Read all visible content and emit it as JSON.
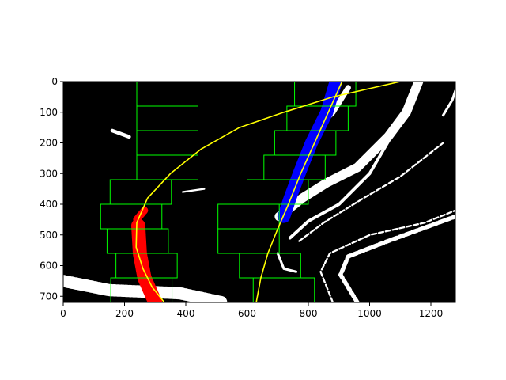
{
  "chart_data": {
    "type": "image",
    "title": "",
    "xlabel": "",
    "ylabel": "",
    "xlim": [
      0,
      1280
    ],
    "ylim": [
      720,
      0
    ],
    "x_ticks": [
      0,
      200,
      400,
      600,
      800,
      1000,
      1200
    ],
    "y_ticks": [
      0,
      100,
      200,
      300,
      400,
      500,
      600,
      700
    ],
    "x_tick_labels": [
      "0",
      "200",
      "400",
      "600",
      "800",
      "1000",
      "1200"
    ],
    "y_tick_labels": [
      "0",
      "100",
      "200",
      "300",
      "400",
      "500",
      "600",
      "700"
    ],
    "colors": {
      "background": "#000000",
      "window": "#00ff00",
      "fit_line": "#ffff00",
      "left_lane_pixels": "#ff0000",
      "right_lane_pixels": "#0000ff",
      "other_pixels": "#ffffff"
    },
    "windows": {
      "left": [
        {
          "x1": 155,
          "y1": 640,
          "x2": 355,
          "y2": 720
        },
        {
          "x1": 172,
          "y1": 560,
          "x2": 372,
          "y2": 640
        },
        {
          "x1": 143,
          "y1": 480,
          "x2": 343,
          "y2": 560
        },
        {
          "x1": 122,
          "y1": 400,
          "x2": 322,
          "y2": 480
        },
        {
          "x1": 153,
          "y1": 320,
          "x2": 353,
          "y2": 400
        },
        {
          "x1": 240,
          "y1": 240,
          "x2": 440,
          "y2": 320
        },
        {
          "x1": 240,
          "y1": 160,
          "x2": 440,
          "y2": 240
        },
        {
          "x1": 240,
          "y1": 80,
          "x2": 440,
          "y2": 160
        },
        {
          "x1": 240,
          "y1": 0,
          "x2": 440,
          "y2": 80
        }
      ],
      "right": [
        {
          "x1": 620,
          "y1": 640,
          "x2": 820,
          "y2": 720
        },
        {
          "x1": 575,
          "y1": 560,
          "x2": 775,
          "y2": 640
        },
        {
          "x1": 505,
          "y1": 480,
          "x2": 705,
          "y2": 560
        },
        {
          "x1": 505,
          "y1": 400,
          "x2": 705,
          "y2": 480
        },
        {
          "x1": 600,
          "y1": 320,
          "x2": 800,
          "y2": 400
        },
        {
          "x1": 655,
          "y1": 240,
          "x2": 855,
          "y2": 320
        },
        {
          "x1": 690,
          "y1": 160,
          "x2": 890,
          "y2": 240
        },
        {
          "x1": 730,
          "y1": 80,
          "x2": 930,
          "y2": 160
        },
        {
          "x1": 755,
          "y1": 0,
          "x2": 955,
          "y2": 80
        }
      ]
    },
    "fit_curves": {
      "left": [
        {
          "x": 1100,
          "y": 0
        },
        {
          "x": 880,
          "y": 50
        },
        {
          "x": 720,
          "y": 100
        },
        {
          "x": 575,
          "y": 150
        },
        {
          "x": 450,
          "y": 220
        },
        {
          "x": 350,
          "y": 300
        },
        {
          "x": 275,
          "y": 380
        },
        {
          "x": 240,
          "y": 460
        },
        {
          "x": 238,
          "y": 540
        },
        {
          "x": 260,
          "y": 610
        },
        {
          "x": 290,
          "y": 670
        },
        {
          "x": 330,
          "y": 720
        }
      ],
      "right": [
        {
          "x": 910,
          "y": 0
        },
        {
          "x": 865,
          "y": 100
        },
        {
          "x": 820,
          "y": 200
        },
        {
          "x": 775,
          "y": 300
        },
        {
          "x": 735,
          "y": 400
        },
        {
          "x": 700,
          "y": 480
        },
        {
          "x": 668,
          "y": 560
        },
        {
          "x": 645,
          "y": 640
        },
        {
          "x": 630,
          "y": 720
        }
      ]
    },
    "lane_pixels": {
      "left_segments": [
        {
          "points": [
            [
              245,
              470
            ],
            [
              250,
              560
            ],
            [
              265,
              640
            ],
            [
              300,
              720
            ]
          ],
          "width": 46
        },
        {
          "points": [
            [
              240,
              450
            ],
            [
              265,
              420
            ]
          ],
          "width": 24
        }
      ],
      "right_segments": [
        {
          "points": [
            [
              890,
              0
            ],
            [
              860,
              100
            ],
            [
              810,
              200
            ],
            [
              770,
              300
            ],
            [
              740,
              380
            ],
            [
              720,
              440
            ]
          ],
          "width": 42
        }
      ]
    },
    "noise_regions": [
      {
        "points": [
          [
            705,
            440
          ],
          [
            780,
            380
          ],
          [
            860,
            330
          ],
          [
            960,
            280
          ],
          [
            1060,
            180
          ],
          [
            1120,
            100
          ],
          [
            1160,
            0
          ]
        ],
        "width": 30
      },
      {
        "points": [
          [
            830,
            150
          ],
          [
            880,
            100
          ],
          [
            930,
            20
          ]
        ],
        "width": 18
      },
      {
        "points": [
          [
            740,
            510
          ],
          [
            800,
            455
          ],
          [
            900,
            400
          ],
          [
            1000,
            300
          ],
          [
            1070,
            180
          ],
          [
            1120,
            110
          ]
        ],
        "width": 10
      },
      {
        "points": [
          [
            770,
            520
          ],
          [
            850,
            460
          ],
          [
            980,
            380
          ],
          [
            1100,
            310
          ],
          [
            1240,
            200
          ]
        ],
        "width": 6
      },
      {
        "points": [
          [
            960,
            720
          ],
          [
            905,
            630
          ],
          [
            930,
            570
          ],
          [
            1060,
            520
          ],
          [
            1280,
            440
          ]
        ],
        "width": 14
      },
      {
        "points": [
          [
            880,
            720
          ],
          [
            840,
            620
          ],
          [
            870,
            560
          ],
          [
            1000,
            500
          ],
          [
            1180,
            460
          ],
          [
            1280,
            420
          ]
        ],
        "width": 6
      },
      {
        "points": [
          [
            1240,
            110
          ],
          [
            1270,
            60
          ],
          [
            1280,
            30
          ]
        ],
        "width": 8
      },
      {
        "points": [
          [
            0,
            650
          ],
          [
            150,
            680
          ],
          [
            380,
            690
          ],
          [
            520,
            720
          ]
        ],
        "width": 40
      },
      {
        "points": [
          [
            160,
            160
          ],
          [
            215,
            180
          ]
        ],
        "width": 12
      },
      {
        "points": [
          [
            390,
            360
          ],
          [
            460,
            350
          ]
        ],
        "width": 6
      },
      {
        "points": [
          [
            700,
            560
          ],
          [
            720,
            610
          ],
          [
            760,
            620
          ]
        ],
        "width": 8
      }
    ]
  }
}
